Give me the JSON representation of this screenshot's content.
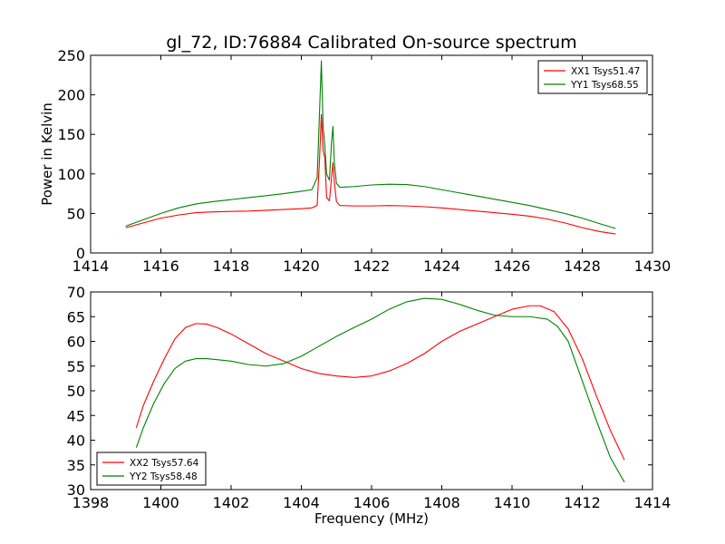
{
  "title": "gl_72, ID:76884 Calibrated On-source spectrum",
  "chart_data": [
    {
      "type": "line",
      "title": "gl_72, ID:76884 Calibrated On-source spectrum",
      "xlabel": "",
      "ylabel": "Power in Kelvin",
      "xlim": [
        1414,
        1430
      ],
      "ylim": [
        0,
        250
      ],
      "xticks": [
        1414,
        1416,
        1418,
        1420,
        1422,
        1424,
        1426,
        1428,
        1430
      ],
      "yticks": [
        0,
        50,
        100,
        150,
        200,
        250
      ],
      "grid": false,
      "legend_position": "top-right",
      "series": [
        {
          "name": "XX1 Tsys51.47",
          "color": "#ff0000",
          "x": [
            1415.0,
            1415.5,
            1416.0,
            1416.5,
            1417.0,
            1417.5,
            1418.0,
            1418.5,
            1419.0,
            1419.5,
            1420.0,
            1420.3,
            1420.45,
            1420.52,
            1420.57,
            1420.62,
            1420.67,
            1420.72,
            1420.8,
            1420.86,
            1420.9,
            1420.94,
            1421.0,
            1421.1,
            1421.5,
            1422.0,
            1422.5,
            1423.0,
            1423.5,
            1424.0,
            1424.5,
            1425.0,
            1425.5,
            1426.0,
            1426.5,
            1427.0,
            1427.5,
            1428.0,
            1428.5,
            1428.95
          ],
          "y": [
            32,
            38,
            44,
            48,
            51,
            52,
            52.5,
            53,
            54,
            55,
            56,
            57,
            60,
            120,
            175,
            130,
            120,
            70,
            66,
            95,
            114,
            90,
            65,
            60,
            59.5,
            59.5,
            60,
            59.5,
            58.5,
            57,
            55,
            53,
            51,
            49,
            46.5,
            43,
            38,
            32,
            27,
            24
          ]
        },
        {
          "name": "YY1 Tsys68.55",
          "color": "#008000",
          "x": [
            1415.0,
            1415.5,
            1416.0,
            1416.5,
            1417.0,
            1417.5,
            1418.0,
            1418.5,
            1419.0,
            1419.5,
            1420.0,
            1420.3,
            1420.45,
            1420.52,
            1420.57,
            1420.62,
            1420.67,
            1420.72,
            1420.8,
            1420.86,
            1420.9,
            1420.94,
            1421.0,
            1421.1,
            1421.5,
            1422.0,
            1422.5,
            1423.0,
            1423.5,
            1424.0,
            1424.5,
            1425.0,
            1425.5,
            1426.0,
            1426.5,
            1427.0,
            1427.5,
            1428.0,
            1428.5,
            1428.95
          ],
          "y": [
            34,
            42,
            50,
            57,
            62,
            65,
            67.5,
            70,
            72.5,
            75,
            78,
            80,
            95,
            180,
            243,
            160,
            135,
            100,
            92,
            140,
            160,
            115,
            88,
            83,
            84,
            86,
            87,
            86.5,
            84,
            80,
            76,
            72,
            68,
            64,
            60,
            55,
            50,
            44,
            37,
            31
          ]
        }
      ]
    },
    {
      "type": "line",
      "title": "",
      "xlabel": "Frequency (MHz)",
      "ylabel": "",
      "xlim": [
        1398,
        1414
      ],
      "ylim": [
        30,
        70
      ],
      "xticks": [
        1398,
        1400,
        1402,
        1404,
        1406,
        1408,
        1410,
        1412,
        1414
      ],
      "yticks": [
        30,
        35,
        40,
        45,
        50,
        55,
        60,
        65,
        70
      ],
      "grid": false,
      "legend_position": "bottom-left",
      "series": [
        {
          "name": "XX2 Tsys57.64",
          "color": "#ff0000",
          "x": [
            1399.3,
            1399.5,
            1399.8,
            1400.1,
            1400.4,
            1400.7,
            1401.0,
            1401.3,
            1401.6,
            1402.0,
            1402.5,
            1403.0,
            1403.5,
            1404.0,
            1404.5,
            1405.0,
            1405.5,
            1406.0,
            1406.5,
            1407.0,
            1407.5,
            1408.0,
            1408.5,
            1409.0,
            1409.5,
            1410.0,
            1410.5,
            1410.8,
            1411.2,
            1411.6,
            1412.0,
            1412.4,
            1412.8,
            1413.2
          ],
          "y": [
            42.5,
            47,
            52,
            56.5,
            60.5,
            62.8,
            63.6,
            63.5,
            62.8,
            61.5,
            59.5,
            57.5,
            56,
            54.5,
            53.5,
            53,
            52.7,
            53,
            54,
            55.5,
            57.5,
            60,
            62,
            63.5,
            65,
            66.5,
            67.2,
            67.2,
            66,
            62.5,
            56.5,
            49,
            42,
            36
          ]
        },
        {
          "name": "YY2 Tsys58.48",
          "color": "#008000",
          "x": [
            1399.3,
            1399.5,
            1399.8,
            1400.1,
            1400.4,
            1400.7,
            1401.0,
            1401.3,
            1401.6,
            1402.0,
            1402.5,
            1403.0,
            1403.5,
            1404.0,
            1404.5,
            1405.0,
            1405.5,
            1406.0,
            1406.5,
            1407.0,
            1407.5,
            1408.0,
            1408.5,
            1409.0,
            1409.5,
            1410.0,
            1410.5,
            1411.0,
            1411.3,
            1411.6,
            1412.0,
            1412.4,
            1412.8,
            1413.2
          ],
          "y": [
            38.5,
            42.5,
            47.5,
            51.5,
            54.5,
            56,
            56.5,
            56.5,
            56.3,
            56,
            55.3,
            55,
            55.5,
            57,
            59,
            61,
            62.8,
            64.5,
            66.5,
            68,
            68.7,
            68.5,
            67.5,
            66.3,
            65.3,
            65,
            65,
            64.5,
            63,
            60,
            52,
            44,
            36.5,
            31.5
          ]
        }
      ]
    }
  ]
}
